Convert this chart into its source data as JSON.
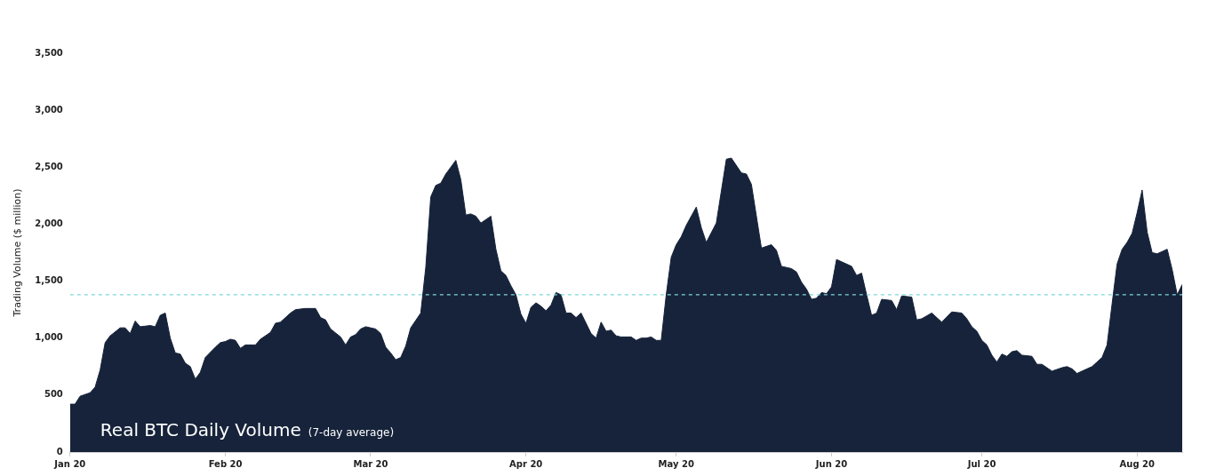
{
  "chart_data": {
    "type": "area",
    "title": "Real BTC Daily Volume",
    "subtitle": "(7-day average)",
    "ylabel": "Trading Volume ($ million)",
    "x": [
      "2020-01-01",
      "2020-01-02",
      "2020-01-03",
      "2020-01-05",
      "2020-01-06",
      "2020-01-07",
      "2020-01-08",
      "2020-01-09",
      "2020-01-11",
      "2020-01-12",
      "2020-01-13",
      "2020-01-14",
      "2020-01-15",
      "2020-01-17",
      "2020-01-18",
      "2020-01-19",
      "2020-01-20",
      "2020-01-21",
      "2020-01-22",
      "2020-01-23",
      "2020-01-24",
      "2020-01-25",
      "2020-01-26",
      "2020-01-27",
      "2020-01-28",
      "2020-01-30",
      "2020-01-31",
      "2020-02-01",
      "2020-02-02",
      "2020-02-03",
      "2020-02-04",
      "2020-02-05",
      "2020-02-07",
      "2020-02-08",
      "2020-02-10",
      "2020-02-11",
      "2020-02-12",
      "2020-02-13",
      "2020-02-14",
      "2020-02-15",
      "2020-02-17",
      "2020-02-19",
      "2020-02-20",
      "2020-02-21",
      "2020-02-22",
      "2020-02-24",
      "2020-02-25",
      "2020-02-26",
      "2020-02-27",
      "2020-02-28",
      "2020-02-29",
      "2020-03-02",
      "2020-03-03",
      "2020-03-04",
      "2020-03-05",
      "2020-03-06",
      "2020-03-07",
      "2020-03-08",
      "2020-03-09",
      "2020-03-11",
      "2020-03-12",
      "2020-03-13",
      "2020-03-14",
      "2020-03-15",
      "2020-03-16",
      "2020-03-18",
      "2020-03-19",
      "2020-03-20",
      "2020-03-21",
      "2020-03-22",
      "2020-03-23",
      "2020-03-24",
      "2020-03-25",
      "2020-03-26",
      "2020-03-27",
      "2020-03-28",
      "2020-03-29",
      "2020-03-30",
      "2020-03-31",
      "2020-04-01",
      "2020-04-02",
      "2020-04-03",
      "2020-04-04",
      "2020-04-05",
      "2020-04-06",
      "2020-04-07",
      "2020-04-08",
      "2020-04-09",
      "2020-04-10",
      "2020-04-11",
      "2020-04-12",
      "2020-04-13",
      "2020-04-14",
      "2020-04-15",
      "2020-04-16",
      "2020-04-17",
      "2020-04-18",
      "2020-04-19",
      "2020-04-20",
      "2020-04-22",
      "2020-04-23",
      "2020-04-24",
      "2020-04-25",
      "2020-04-26",
      "2020-04-27",
      "2020-04-28",
      "2020-04-29",
      "2020-04-30",
      "2020-05-01",
      "2020-05-02",
      "2020-05-03",
      "2020-05-05",
      "2020-05-06",
      "2020-05-07",
      "2020-05-09",
      "2020-05-11",
      "2020-05-12",
      "2020-05-14",
      "2020-05-15",
      "2020-05-16",
      "2020-05-18",
      "2020-05-20",
      "2020-05-21",
      "2020-05-22",
      "2020-05-24",
      "2020-05-25",
      "2020-05-26",
      "2020-05-27",
      "2020-05-28",
      "2020-05-29",
      "2020-05-30",
      "2020-05-31",
      "2020-06-01",
      "2020-06-02",
      "2020-06-04",
      "2020-06-05",
      "2020-06-06",
      "2020-06-07",
      "2020-06-08",
      "2020-06-09",
      "2020-06-10",
      "2020-06-11",
      "2020-06-13",
      "2020-06-14",
      "2020-06-15",
      "2020-06-17",
      "2020-06-18",
      "2020-06-19",
      "2020-06-21",
      "2020-06-23",
      "2020-06-25",
      "2020-06-27",
      "2020-06-28",
      "2020-06-29",
      "2020-06-30",
      "2020-07-01",
      "2020-07-02",
      "2020-07-03",
      "2020-07-04",
      "2020-07-05",
      "2020-07-06",
      "2020-07-07",
      "2020-07-08",
      "2020-07-09",
      "2020-07-11",
      "2020-07-12",
      "2020-07-13",
      "2020-07-15",
      "2020-07-17",
      "2020-07-18",
      "2020-07-19",
      "2020-07-20",
      "2020-07-22",
      "2020-07-23",
      "2020-07-25",
      "2020-07-26",
      "2020-07-27",
      "2020-07-28",
      "2020-07-29",
      "2020-07-30",
      "2020-07-31",
      "2020-08-01",
      "2020-08-02",
      "2020-08-03",
      "2020-08-04",
      "2020-08-05",
      "2020-08-06",
      "2020-08-07",
      "2020-08-08",
      "2020-08-09",
      "2020-08-10"
    ],
    "series": [
      {
        "color": "#16233a",
        "values": [
          420,
          420,
          490,
          520,
          570,
          720,
          960,
          1020,
          1090,
          1090,
          1040,
          1150,
          1100,
          1110,
          1100,
          1200,
          1220,
          1000,
          870,
          860,
          780,
          750,
          640,
          700,
          830,
          920,
          960,
          970,
          990,
          980,
          910,
          940,
          940,
          990,
          1050,
          1130,
          1140,
          1180,
          1220,
          1250,
          1260,
          1260,
          1180,
          1160,
          1080,
          1010,
          940,
          1010,
          1030,
          1080,
          1100,
          1080,
          1040,
          920,
          870,
          810,
          830,
          930,
          1090,
          1220,
          1620,
          2240,
          2340,
          2360,
          2440,
          2560,
          2390,
          2080,
          2090,
          2070,
          2010,
          2040,
          2070,
          1780,
          1590,
          1550,
          1460,
          1380,
          1210,
          1130,
          1270,
          1310,
          1280,
          1240,
          1290,
          1400,
          1380,
          1220,
          1220,
          1180,
          1220,
          1130,
          1040,
          1000,
          1140,
          1060,
          1070,
          1020,
          1010,
          1010,
          980,
          1000,
          1000,
          1010,
          980,
          980,
          1380,
          1710,
          1820,
          1890,
          1990,
          2150,
          1970,
          1840,
          2010,
          2570,
          2580,
          2450,
          2440,
          2350,
          1790,
          1820,
          1770,
          1630,
          1610,
          1580,
          1490,
          1430,
          1340,
          1350,
          1400,
          1390,
          1450,
          1690,
          1650,
          1630,
          1550,
          1570,
          1380,
          1200,
          1220,
          1340,
          1330,
          1250,
          1370,
          1360,
          1160,
          1170,
          1220,
          1140,
          1230,
          1220,
          1170,
          1100,
          1060,
          980,
          940,
          850,
          790,
          860,
          840,
          880,
          890,
          850,
          840,
          770,
          770,
          710,
          740,
          750,
          730,
          690,
          730,
          750,
          830,
          940,
          1300,
          1650,
          1780,
          1840,
          1920,
          2100,
          2300,
          1930,
          1750,
          1740,
          1760,
          1780,
          1600,
          1380,
          1470
        ]
      }
    ],
    "xlim": [
      "2020-01-01",
      "2020-08-10"
    ],
    "xticks": [
      {
        "value": "2020-01-01",
        "label": "Jan 20"
      },
      {
        "value": "2020-02-01",
        "label": "Feb 20"
      },
      {
        "value": "2020-03-01",
        "label": "Mar 20"
      },
      {
        "value": "2020-04-01",
        "label": "Apr 20"
      },
      {
        "value": "2020-05-01",
        "label": "May 20"
      },
      {
        "value": "2020-06-01",
        "label": "Jun 20"
      },
      {
        "value": "2020-07-01",
        "label": "Jul 20"
      },
      {
        "value": "2020-08-01",
        "label": "Aug 20"
      }
    ],
    "ylim": [
      0,
      3500
    ],
    "yticks": [
      0,
      500,
      {
        "value": 1000,
        "label": "1,000"
      },
      {
        "value": 1500,
        "label": "1,500"
      },
      {
        "value": 2000,
        "label": "2,000"
      },
      {
        "value": 2500,
        "label": "2,500"
      },
      {
        "value": 3000,
        "label": "3,000"
      },
      {
        "value": 3500,
        "label": "3,500"
      }
    ],
    "ref_lines": [
      {
        "axis": "y",
        "value": 1380,
        "color": "#7fd6d6",
        "line_style": "dashed"
      }
    ],
    "grid": false,
    "legend": false,
    "marker": "none"
  }
}
